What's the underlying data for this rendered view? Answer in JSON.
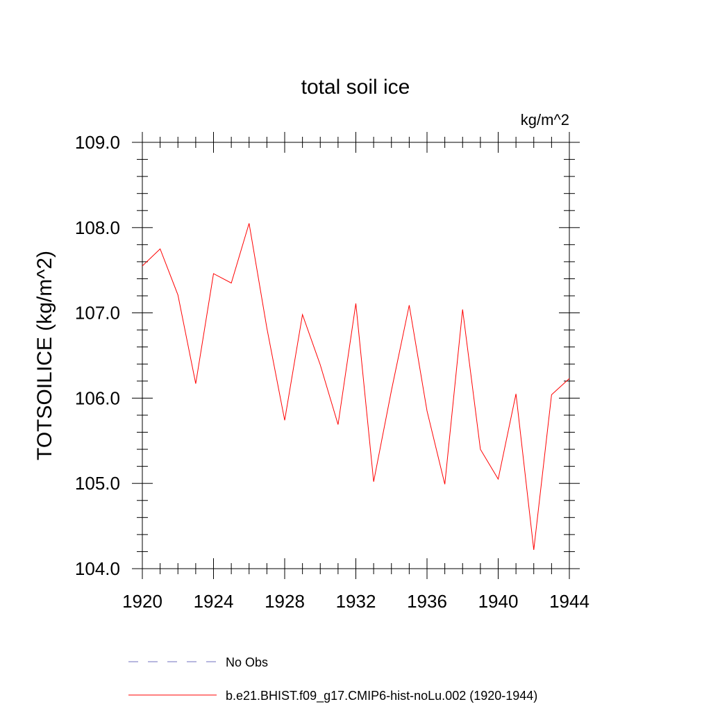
{
  "chart_data": {
    "type": "line",
    "title": "total soil ice",
    "units_label": "kg/m^2",
    "ylabel": "TOTSOILICE  (kg/m^2)",
    "xlabel": "",
    "xlim": [
      1920,
      1944
    ],
    "ylim": [
      104.0,
      109.0
    ],
    "x_ticks": [
      1920,
      1924,
      1928,
      1932,
      1936,
      1940,
      1944
    ],
    "y_ticks": [
      104.0,
      105.0,
      106.0,
      107.0,
      108.0,
      109.0
    ],
    "x_tick_labels": [
      "1920",
      "1924",
      "1928",
      "1932",
      "1936",
      "1940",
      "1944"
    ],
    "y_tick_labels": [
      "104.0",
      "105.0",
      "106.0",
      "107.0",
      "108.0",
      "109.0"
    ],
    "grid": false,
    "legend_placement": "bottom",
    "series": [
      {
        "name": "b.e21.BHIST.f09_g17.CMIP6-hist-noLu.002 (1920-1944)",
        "color": "#ff0000",
        "style": "solid",
        "x": [
          1920,
          1921,
          1922,
          1923,
          1924,
          1925,
          1926,
          1927,
          1928,
          1929,
          1930,
          1931,
          1932,
          1933,
          1934,
          1935,
          1936,
          1937,
          1938,
          1939,
          1940,
          1941,
          1942,
          1943,
          1944
        ],
        "values": [
          107.55,
          107.75,
          107.21,
          106.17,
          107.46,
          107.35,
          108.05,
          106.82,
          105.74,
          106.98,
          106.39,
          105.69,
          107.11,
          105.02,
          106.09,
          107.09,
          105.85,
          104.99,
          107.04,
          105.4,
          105.05,
          106.05,
          104.22,
          106.04,
          106.23
        ]
      }
    ],
    "legend": [
      {
        "label": "No Obs",
        "color": "#6f6fbf",
        "style": "dashed"
      },
      {
        "label": "b.e21.BHIST.f09_g17.CMIP6-hist-noLu.002 (1920-1944)",
        "color": "#ff0000",
        "style": "solid"
      }
    ]
  }
}
